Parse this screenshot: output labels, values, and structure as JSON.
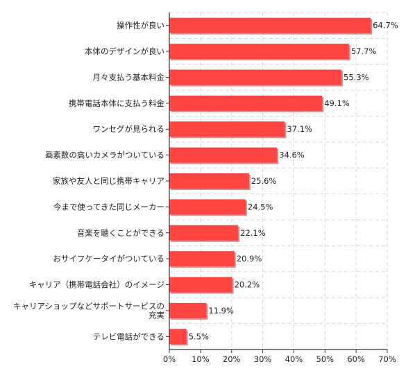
{
  "chart_data": {
    "type": "bar",
    "orientation": "horizontal",
    "title": "",
    "xlabel": "",
    "ylabel": "",
    "categories": [
      "操作性が良い",
      "本体のデザインが良い",
      "月々支払う基本料金",
      "携帯電話本体に支払う料金",
      "ワンセグが見られる",
      "画素数の高いカメラがついている",
      "家族や友人と同じ携帯キャリア",
      "今まで使ってきた同じメーカー",
      "音楽を聴くことができる",
      "おサイフケータイがついている",
      "キャリア（携帯電話会社）のイメージ",
      "キャリアショップなどサポートサービスの充実",
      "テレビ電話ができる"
    ],
    "category_lines": [
      [
        "操作性が良い"
      ],
      [
        "本体のデザインが良い"
      ],
      [
        "月々支払う基本料金"
      ],
      [
        "携帯電話本体に支払う料金"
      ],
      [
        "ワンセグが見られる"
      ],
      [
        "画素数の高いカメラがついている"
      ],
      [
        "家族や友人と同じ携帯キャリア"
      ],
      [
        "今まで使ってきた同じメーカー"
      ],
      [
        "音楽を聴くことができる"
      ],
      [
        "おサイフケータイがついている"
      ],
      [
        "キャリア（携帯電話会社）のイメージ"
      ],
      [
        "キャリアショップなどサポートサービスの",
        "充実"
      ],
      [
        "テレビ電話ができる"
      ]
    ],
    "values": [
      64.7,
      57.7,
      55.3,
      49.1,
      37.1,
      34.6,
      25.6,
      24.5,
      22.1,
      20.9,
      20.2,
      11.9,
      5.5
    ],
    "value_labels": [
      "64.7%",
      "57.7%",
      "55.3%",
      "49.1%",
      "37.1%",
      "34.6%",
      "25.6%",
      "24.5%",
      "22.1%",
      "20.9%",
      "20.2%",
      "11.9%",
      "5.5%"
    ],
    "xlim": [
      0,
      70
    ],
    "x_ticks": [
      0,
      10,
      20,
      30,
      40,
      50,
      60,
      70
    ],
    "x_tick_labels": [
      "0%",
      "10%",
      "20%",
      "30%",
      "40%",
      "50%",
      "60%",
      "70%"
    ],
    "grid": true,
    "legend": "none",
    "colors": {
      "bar": "#ff4444",
      "bar_shadow": "#b83030",
      "grid": "#d6d6d6",
      "axis": "#333333"
    }
  }
}
